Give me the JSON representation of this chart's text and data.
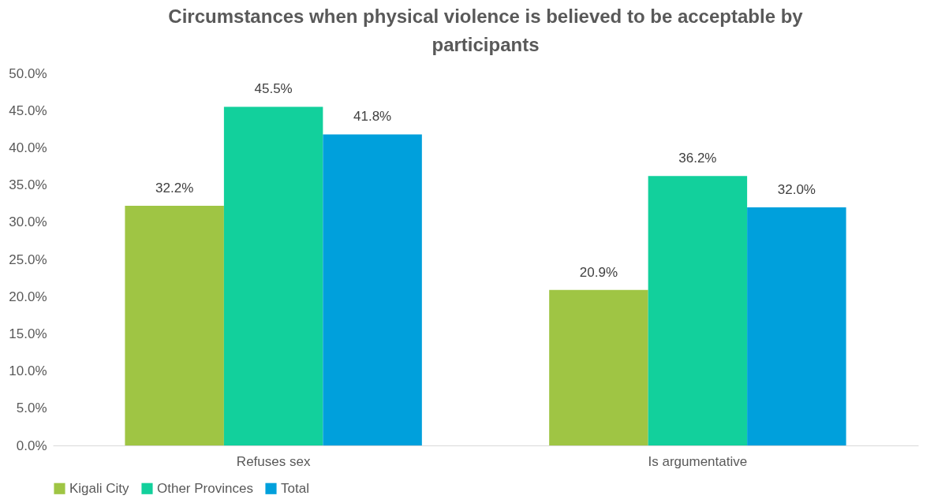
{
  "chart_data": {
    "type": "bar",
    "title": "Circumstances when physical violence is believed to be acceptable by participants",
    "categories": [
      "Refuses sex",
      "Is argumentative"
    ],
    "series": [
      {
        "name": "Kigali City",
        "color": "#9fc544",
        "values": [
          32.2,
          20.9
        ],
        "value_labels": [
          "32.2%",
          "20.9%"
        ]
      },
      {
        "name": "Other Provinces",
        "color": "#12d09c",
        "values": [
          45.5,
          36.2
        ],
        "value_labels": [
          "45.5%",
          "36.2%"
        ]
      },
      {
        "name": "Total",
        "color": "#00a0dc",
        "values": [
          41.8,
          32.0
        ],
        "value_labels": [
          "41.8%",
          "32.0%"
        ]
      }
    ],
    "ylim": [
      0,
      50
    ],
    "yticks": [
      {
        "value": 0,
        "label": "0.0%"
      },
      {
        "value": 5,
        "label": "5.0%"
      },
      {
        "value": 10,
        "label": "10.0%"
      },
      {
        "value": 15,
        "label": "15.0%"
      },
      {
        "value": 20,
        "label": "20.0%"
      },
      {
        "value": 25,
        "label": "25.0%"
      },
      {
        "value": 30,
        "label": "30.0%"
      },
      {
        "value": 35,
        "label": "35.0%"
      },
      {
        "value": 40,
        "label": "40.0%"
      },
      {
        "value": 45,
        "label": "45.0%"
      },
      {
        "value": 50,
        "label": "50.0%"
      }
    ],
    "grid": false,
    "legend": "bottom"
  }
}
